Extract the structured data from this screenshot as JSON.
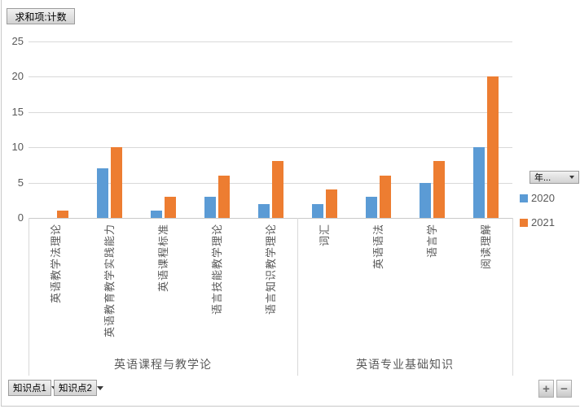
{
  "pivot_buttons": {
    "value_field": "求和项:计数",
    "axis_fields": [
      {
        "label": "知识点1"
      },
      {
        "label": "知识点2"
      }
    ],
    "legend_field": "年..."
  },
  "expand_collapse": {
    "expand": "+",
    "collapse": "−"
  },
  "legend": {
    "items": [
      {
        "label": "2020",
        "color": "#5B9BD5"
      },
      {
        "label": "2021",
        "color": "#ED7D31"
      }
    ]
  },
  "colors": {
    "series_2020": "#5B9BD5",
    "series_2021": "#ED7D31",
    "gridline": "#D9D9D9",
    "axis_text": "#595959"
  },
  "chart_data": {
    "type": "bar",
    "title": "求和项:计数",
    "categories": [
      "英语教学法理论",
      "英语教育教学实践能力",
      "英语课程标准",
      "语言技能教学理论",
      "语言知识教学理论",
      "词汇",
      "英语语法",
      "语言学",
      "阅读理解"
    ],
    "groups": [
      {
        "label": "英语课程与教学论",
        "span": 5
      },
      {
        "label": "英语专业基础知识",
        "span": 4
      }
    ],
    "series": [
      {
        "name": "2020",
        "color": "#5B9BD5",
        "values": [
          0,
          7,
          1,
          3,
          2,
          2,
          3,
          5,
          10
        ]
      },
      {
        "name": "2021",
        "color": "#ED7D31",
        "values": [
          1,
          10,
          3,
          6,
          8,
          4,
          6,
          8,
          20
        ]
      }
    ],
    "xlabel": "",
    "ylabel": "",
    "ylim": [
      0,
      25
    ],
    "yticks": [
      0,
      5,
      10,
      15,
      20,
      25
    ],
    "grid": true,
    "legend_position": "right"
  }
}
